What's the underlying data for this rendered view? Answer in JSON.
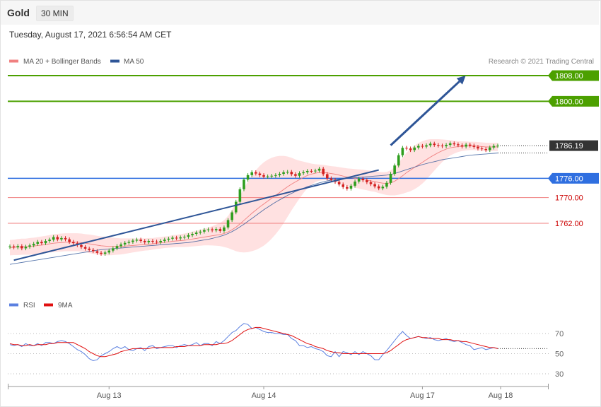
{
  "header": {
    "title": "Gold",
    "timeframe": "30 MIN",
    "timestamp": "Tuesday, August 17, 2021 6:56:54 AM CET"
  },
  "legend": {
    "ma20_label": "MA 20 + Bollinger Bands",
    "ma50_label": "MA 50",
    "ma20_color": "#f08080",
    "ma50_color": "#2e5597",
    "credit": "Research © 2021 Trading Central"
  },
  "rsi_legend": {
    "rsi_label": "RSI",
    "ma9_label": "9MA",
    "rsi_color": "#5b80e0",
    "ma9_color": "#e01010"
  },
  "chart_data": [
    {
      "type": "candlestick",
      "title": "Gold",
      "x_ticks": [
        "Aug 13",
        "Aug 14",
        "Aug 17",
        "Aug 18"
      ],
      "ylim": [
        1748,
        1813
      ],
      "levels": [
        {
          "value": 1808.0,
          "label": "1808.00",
          "color": "#4ca000",
          "style": "resistance-solid"
        },
        {
          "value": 1800.0,
          "label": "1800.00",
          "color": "#4ca000",
          "style": "resistance-solid"
        },
        {
          "value": 1786.19,
          "label": "1786.19",
          "color": "#333333",
          "style": "last-price"
        },
        {
          "value": 1776.0,
          "label": "1776.00",
          "color": "#2f6fe0",
          "style": "pivot"
        },
        {
          "value": 1770.0,
          "label": "1770.00",
          "color": "#cc0000",
          "style": "support"
        },
        {
          "value": 1762.0,
          "label": "1762.00",
          "color": "#cc0000",
          "style": "support"
        }
      ],
      "closes": [
        1754.8,
        1754.5,
        1754.9,
        1754.2,
        1754.7,
        1755.1,
        1755.6,
        1756.2,
        1755.8,
        1756.5,
        1756.9,
        1757.7,
        1757.0,
        1757.4,
        1757.0,
        1756.2,
        1755.8,
        1755.2,
        1754.6,
        1754.1,
        1753.7,
        1753.3,
        1752.8,
        1752.5,
        1752.9,
        1753.5,
        1754.2,
        1754.9,
        1755.4,
        1755.9,
        1756.2,
        1756.6,
        1756.9,
        1756.5,
        1756.1,
        1756.5,
        1756.3,
        1756.1,
        1756.5,
        1756.9,
        1757.2,
        1757.5,
        1757.3,
        1757.6,
        1757.8,
        1758.3,
        1758.7,
        1759.1,
        1759.4,
        1759.9,
        1760.1,
        1759.8,
        1760.2,
        1759.6,
        1760.7,
        1763.0,
        1765.4,
        1768.7,
        1772.6,
        1775.6,
        1777.0,
        1777.9,
        1777.5,
        1777.0,
        1776.5,
        1776.6,
        1776.8,
        1777.0,
        1777.4,
        1777.9,
        1778.0,
        1777.3,
        1776.8,
        1777.6,
        1777.9,
        1778.3,
        1778.2,
        1778.4,
        1779.0,
        1777.3,
        1776.0,
        1775.5,
        1774.9,
        1774.1,
        1773.3,
        1772.8,
        1773.7,
        1775.0,
        1775.9,
        1775.4,
        1774.8,
        1774.2,
        1773.5,
        1772.9,
        1773.4,
        1774.6,
        1777.4,
        1780.0,
        1783.2,
        1785.5,
        1785.3,
        1784.8,
        1785.6,
        1786.1,
        1785.9,
        1786.3,
        1786.8,
        1786.4,
        1786.2,
        1786.0,
        1786.4,
        1786.9,
        1786.6,
        1786.3,
        1785.9,
        1786.5,
        1786.2,
        1785.8,
        1785.3,
        1785.1,
        1784.8,
        1785.6,
        1786.1,
        1786.19
      ],
      "ma20": [
        1754.4,
        1754.5,
        1754.6,
        1754.7,
        1754.7,
        1754.8,
        1754.9,
        1755.1,
        1755.2,
        1755.4,
        1755.6,
        1755.8,
        1755.9,
        1756.0,
        1756.1,
        1756.1,
        1756.1,
        1756.1,
        1756.0,
        1755.8,
        1755.6,
        1755.4,
        1755.2,
        1755.0,
        1754.9,
        1754.8,
        1754.8,
        1754.8,
        1754.8,
        1754.9,
        1755.0,
        1755.1,
        1755.2,
        1755.3,
        1755.4,
        1755.5,
        1755.6,
        1755.8,
        1755.9,
        1756.1,
        1756.2,
        1756.4,
        1756.5,
        1756.6,
        1756.7,
        1756.9,
        1757.1,
        1757.3,
        1757.5,
        1757.7,
        1757.9,
        1758.1,
        1758.3,
        1758.5,
        1758.8,
        1759.3,
        1760.0,
        1760.8,
        1761.8,
        1762.9,
        1764.0,
        1765.1,
        1766.1,
        1767.1,
        1768.0,
        1768.9,
        1769.8,
        1770.7,
        1771.6,
        1772.5,
        1773.4,
        1774.2,
        1774.9,
        1775.6,
        1776.3,
        1776.9,
        1777.3,
        1777.6,
        1777.8,
        1777.8,
        1777.7,
        1777.5,
        1777.3,
        1777.0,
        1776.7,
        1776.4,
        1776.2,
        1776.0,
        1775.8,
        1775.6,
        1775.4,
        1775.2,
        1775.0,
        1774.7,
        1774.5,
        1774.4,
        1774.6,
        1775.1,
        1775.9,
        1776.8,
        1777.8,
        1778.6,
        1779.4,
        1780.2,
        1781.0,
        1781.8,
        1782.6,
        1783.3,
        1784.0,
        1784.6,
        1785.1,
        1785.5,
        1785.7,
        1785.9,
        1786.0,
        1786.1,
        1786.1,
        1786.1,
        1786.0,
        1785.9,
        1785.8,
        1785.8,
        1785.8,
        1785.8
      ],
      "ma50": [
        1749.2,
        1749.4,
        1749.6,
        1749.8,
        1750.0,
        1750.2,
        1750.4,
        1750.6,
        1750.8,
        1751.0,
        1751.2,
        1751.4,
        1751.6,
        1751.8,
        1752.0,
        1752.2,
        1752.4,
        1752.6,
        1752.8,
        1753.0,
        1753.2,
        1753.4,
        1753.6,
        1753.8,
        1753.9,
        1754.0,
        1754.1,
        1754.2,
        1754.3,
        1754.4,
        1754.5,
        1754.6,
        1754.7,
        1754.8,
        1754.9,
        1755.0,
        1755.1,
        1755.2,
        1755.3,
        1755.4,
        1755.5,
        1755.6,
        1755.7,
        1755.8,
        1755.9,
        1756.0,
        1756.2,
        1756.4,
        1756.6,
        1756.8,
        1757.0,
        1757.3,
        1757.6,
        1757.9,
        1758.3,
        1758.8,
        1759.4,
        1760.1,
        1760.9,
        1761.7,
        1762.6,
        1763.5,
        1764.4,
        1765.3,
        1766.2,
        1767.0,
        1767.8,
        1768.6,
        1769.3,
        1770.0,
        1770.7,
        1771.3,
        1771.9,
        1772.4,
        1772.9,
        1773.4,
        1773.8,
        1774.2,
        1774.6,
        1774.9,
        1775.2,
        1775.4,
        1775.6,
        1775.8,
        1775.9,
        1776.0,
        1776.1,
        1776.2,
        1776.3,
        1776.4,
        1776.5,
        1776.6,
        1776.7,
        1776.8,
        1776.9,
        1777.0,
        1777.2,
        1777.5,
        1777.9,
        1778.3,
        1778.7,
        1779.1,
        1779.5,
        1779.9,
        1780.3,
        1780.6,
        1780.9,
        1781.2,
        1781.5,
        1781.8,
        1782.0,
        1782.2,
        1782.4,
        1782.6,
        1782.8,
        1783.0,
        1783.2,
        1783.3,
        1783.4,
        1783.5,
        1783.6,
        1783.7,
        1783.8,
        1783.9
      ],
      "bb_half_width": [
        2.4,
        2.4,
        2.5,
        2.5,
        2.5,
        2.6,
        2.6,
        2.6,
        2.7,
        2.7,
        2.7,
        2.8,
        2.8,
        2.8,
        2.8,
        2.8,
        2.8,
        2.8,
        2.8,
        2.8,
        2.9,
        2.9,
        2.9,
        2.9,
        2.9,
        2.8,
        2.7,
        2.6,
        2.5,
        2.4,
        2.3,
        2.2,
        2.1,
        2.0,
        1.9,
        1.9,
        1.8,
        1.8,
        1.8,
        1.8,
        1.8,
        1.9,
        1.9,
        2.0,
        2.1,
        2.2,
        2.3,
        2.4,
        2.5,
        2.6,
        2.8,
        3.0,
        3.3,
        3.6,
        4.2,
        5.0,
        6.2,
        7.5,
        8.8,
        10.0,
        11.0,
        11.8,
        12.4,
        12.8,
        13.0,
        12.9,
        12.6,
        12.1,
        11.4,
        10.5,
        9.4,
        8.2,
        7.0,
        5.9,
        4.9,
        4.0,
        3.3,
        2.8,
        2.5,
        2.4,
        2.3,
        2.3,
        2.4,
        2.5,
        2.6,
        2.7,
        2.8,
        2.9,
        3.0,
        3.1,
        3.1,
        3.2,
        3.2,
        3.3,
        3.4,
        3.6,
        3.9,
        4.4,
        5.0,
        5.6,
        6.2,
        6.6,
        6.8,
        6.8,
        6.6,
        6.2,
        5.6,
        4.9,
        4.2,
        3.5,
        2.9,
        2.4,
        2.0,
        1.7,
        1.5,
        1.4,
        1.3,
        1.3,
        1.3,
        1.3,
        1.3,
        1.3,
        1.3,
        1.3
      ],
      "trendline": {
        "from": [
          1,
          1750.5
        ],
        "to": [
          93,
          1778.6
        ]
      },
      "forecast_arrow": {
        "from": [
          96,
          1786.3
        ],
        "to": [
          106,
          1808.0
        ]
      }
    },
    {
      "type": "line",
      "title": "RSI",
      "ylim": [
        20,
        80
      ],
      "y_ticks": [
        70,
        50,
        30
      ],
      "series": [
        {
          "name": "RSI",
          "values": [
            59,
            58,
            59,
            57,
            60,
            58,
            58,
            60,
            58,
            61,
            61,
            60,
            62,
            63,
            62,
            60,
            57,
            54,
            52,
            49,
            45,
            43,
            44,
            48,
            50,
            52,
            55,
            57,
            55,
            57,
            54,
            53,
            55,
            56,
            53,
            57,
            58,
            55,
            56,
            57,
            58,
            58,
            56,
            58,
            59,
            58,
            59,
            61,
            58,
            60,
            60,
            58,
            62,
            60,
            63,
            67,
            71,
            73,
            77,
            80,
            79,
            75,
            76,
            74,
            72,
            71,
            71,
            70,
            70,
            69,
            69,
            65,
            63,
            58,
            58,
            56,
            57,
            55,
            54,
            52,
            48,
            47,
            52,
            47,
            52,
            51,
            49,
            52,
            49,
            52,
            50,
            48,
            44,
            44,
            49,
            53,
            58,
            63,
            68,
            72,
            68,
            65,
            66,
            67,
            66,
            65,
            66,
            64,
            63,
            64,
            65,
            63,
            62,
            63,
            61,
            59,
            58,
            54,
            55,
            56,
            54,
            55,
            56,
            55
          ]
        },
        {
          "name": "9MA",
          "values": [
            60,
            59,
            59,
            58,
            58,
            59,
            58,
            59,
            59,
            59,
            60,
            60,
            61,
            61,
            61,
            61,
            61,
            59,
            57,
            55,
            52,
            50,
            48,
            47,
            47,
            48,
            49,
            50,
            52,
            53,
            54,
            55,
            55,
            55,
            55,
            55,
            56,
            56,
            56,
            56,
            56,
            56,
            57,
            57,
            57,
            58,
            58,
            58,
            58,
            59,
            59,
            59,
            59,
            60,
            60,
            61,
            63,
            66,
            69,
            72,
            74,
            75,
            76,
            76,
            75,
            74,
            73,
            72,
            71,
            70,
            69,
            68,
            66,
            64,
            62,
            60,
            59,
            57,
            56,
            55,
            53,
            52,
            51,
            51,
            50,
            50,
            50,
            50,
            50,
            50,
            50,
            50,
            50,
            50,
            50,
            51,
            53,
            56,
            59,
            62,
            64,
            65,
            66,
            67,
            66,
            66,
            65,
            65,
            65,
            64,
            64,
            64,
            63,
            63,
            62,
            62,
            61,
            60,
            59,
            58,
            57,
            56,
            56,
            55
          ]
        }
      ]
    }
  ]
}
